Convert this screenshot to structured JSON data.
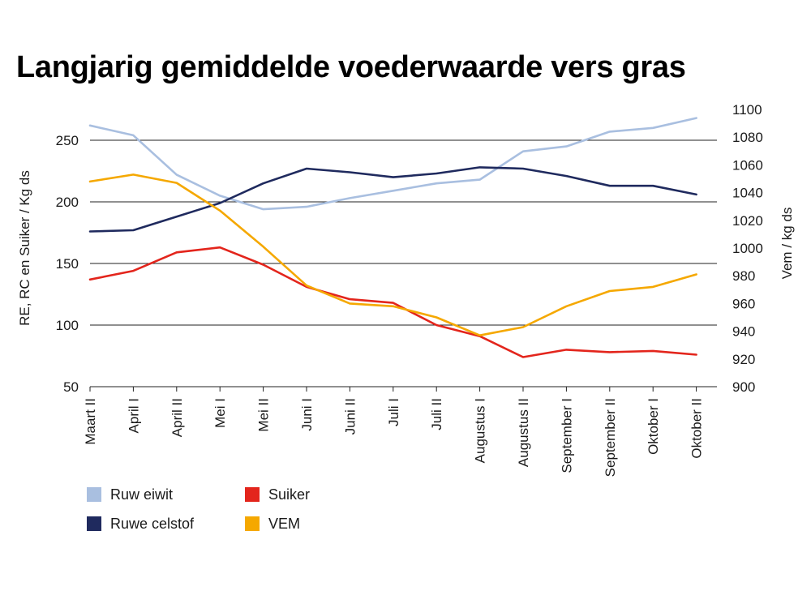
{
  "chart_data": {
    "type": "line",
    "title": "Langjarig gemiddelde voederwaarde vers gras",
    "categories": [
      "Maart II",
      "April I",
      "April II",
      "Mei I",
      "Mei II",
      "Juni I",
      "Juni II",
      "Juli I",
      "Juli II",
      "Augustus I",
      "Augustus II",
      "September I",
      "September II",
      "Oktober I",
      "Oktober II"
    ],
    "ylabel_left": "RE, RC en Suiker / Kg ds",
    "ylabel_right": "Vem / kg ds",
    "ylim_left": [
      50,
      275
    ],
    "ylim_right": [
      900,
      1100
    ],
    "yticks_left": [
      50,
      100,
      150,
      200,
      250
    ],
    "yticks_right": [
      900,
      920,
      940,
      960,
      980,
      1000,
      1020,
      1040,
      1060,
      1080,
      1100
    ],
    "grid": "horizontal",
    "legend_position": "bottom-left",
    "series": [
      {
        "name": "Ruw eiwit",
        "axis": "left",
        "color": "#a9bfe0",
        "values": [
          262,
          254,
          222,
          205,
          194,
          196,
          203,
          209,
          215,
          218,
          241,
          245,
          257,
          260,
          268
        ]
      },
      {
        "name": "Ruwe celstof",
        "axis": "left",
        "color": "#1f2a5e",
        "values": [
          176,
          177,
          188,
          199,
          215,
          227,
          224,
          220,
          223,
          228,
          227,
          221,
          213,
          213,
          206
        ]
      },
      {
        "name": "Suiker",
        "axis": "left",
        "color": "#e3251c",
        "values": [
          137,
          144,
          159,
          163,
          149,
          131,
          121,
          118,
          100,
          91,
          74,
          80,
          78,
          79,
          76
        ]
      },
      {
        "name": "VEM",
        "axis": "right",
        "color": "#f5a800",
        "values": [
          1048,
          1053,
          1047,
          1027,
          1001,
          973,
          960,
          958,
          950,
          937,
          943,
          958,
          969,
          972,
          981
        ]
      }
    ]
  }
}
